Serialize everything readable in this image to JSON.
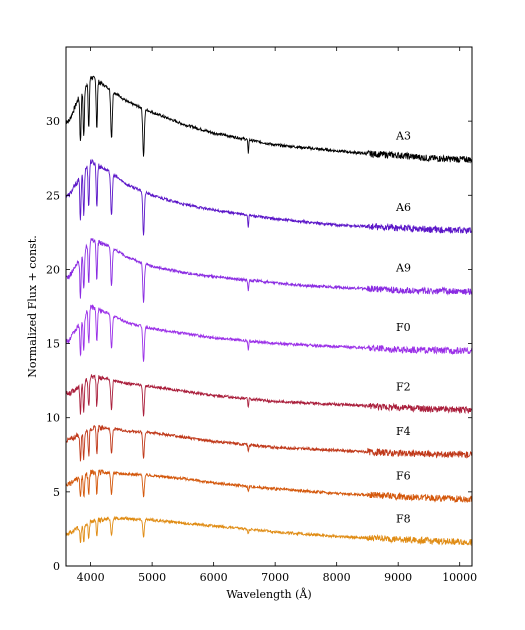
{
  "chart_data": {
    "type": "line",
    "title": "",
    "xlabel": "Wavelength (Å)",
    "ylabel": "Normalized Flux + const.",
    "xlim": [
      3600,
      10200
    ],
    "ylim": [
      0,
      35
    ],
    "x_ticks": [
      4000,
      5000,
      6000,
      7000,
      8000,
      9000,
      10000
    ],
    "x_tick_labels": [
      "4000",
      "5000",
      "6000",
      "7000",
      "8000",
      "9000",
      "10000"
    ],
    "y_ticks": [
      0,
      5,
      10,
      15,
      20,
      25,
      30
    ],
    "y_tick_labels": [
      "0",
      "5",
      "10",
      "15",
      "20",
      "25",
      "30"
    ],
    "grid": false,
    "legend": "none",
    "absorption_lines": [
      3835,
      3889,
      3970,
      4101,
      4340,
      4861,
      6563
    ],
    "series": [
      {
        "name": "A3",
        "color": "#000000",
        "offset": 27.4,
        "x": [
          3650,
          3800,
          4000,
          4300,
          4600,
          5000,
          5500,
          6000,
          6500,
          7000,
          7500,
          8000,
          8500,
          9000,
          9500,
          10200
        ],
        "y": [
          30.0,
          31.5,
          33.0,
          32.2,
          31.3,
          30.6,
          29.8,
          29.2,
          28.8,
          28.4,
          28.2,
          28.0,
          27.8,
          27.7,
          27.5,
          27.4
        ]
      },
      {
        "name": "A6",
        "color": "#5b16c8",
        "offset": 22.6,
        "x": [
          3650,
          3800,
          4000,
          4300,
          4600,
          5000,
          5500,
          6000,
          6500,
          7000,
          7500,
          8000,
          8500,
          9000,
          9500,
          10200
        ],
        "y": [
          25.0,
          26.0,
          27.3,
          26.6,
          25.7,
          25.0,
          24.4,
          24.0,
          23.7,
          23.4,
          23.2,
          23.0,
          22.9,
          22.8,
          22.7,
          22.6
        ]
      },
      {
        "name": "A9",
        "color": "#8a2be2",
        "offset": 18.5,
        "x": [
          3650,
          3800,
          4000,
          4300,
          4600,
          5000,
          5500,
          6000,
          6500,
          7000,
          7500,
          8000,
          8500,
          9000,
          9500,
          10200
        ],
        "y": [
          19.5,
          20.5,
          22.0,
          21.6,
          20.8,
          20.2,
          19.8,
          19.5,
          19.3,
          19.1,
          18.9,
          18.8,
          18.7,
          18.6,
          18.55,
          18.5
        ]
      },
      {
        "name": "F0",
        "color": "#9b30e8",
        "offset": 14.5,
        "x": [
          3650,
          3800,
          4000,
          4300,
          4600,
          5000,
          5500,
          6000,
          6500,
          7000,
          7500,
          8000,
          8500,
          9000,
          9500,
          10200
        ],
        "y": [
          15.2,
          16.2,
          17.5,
          17.0,
          16.4,
          16.0,
          15.7,
          15.4,
          15.2,
          15.0,
          14.9,
          14.8,
          14.7,
          14.6,
          14.55,
          14.5
        ]
      },
      {
        "name": "F2",
        "color": "#aa1f3c",
        "offset": 10.5,
        "x": [
          3650,
          3800,
          4000,
          4300,
          4600,
          5000,
          5500,
          6000,
          6500,
          7000,
          7500,
          8000,
          8500,
          9000,
          9500,
          10200
        ],
        "y": [
          11.6,
          12.1,
          12.8,
          12.6,
          12.3,
          12.1,
          11.8,
          11.5,
          11.3,
          11.1,
          11.0,
          10.9,
          10.8,
          10.7,
          10.6,
          10.5
        ]
      },
      {
        "name": "F4",
        "color": "#c0391a",
        "offset": 7.5,
        "x": [
          3650,
          3800,
          4000,
          4300,
          4600,
          5000,
          5500,
          6000,
          6500,
          7000,
          7500,
          8000,
          8500,
          9000,
          9500,
          10200
        ],
        "y": [
          8.5,
          8.8,
          9.3,
          9.3,
          9.1,
          9.0,
          8.7,
          8.4,
          8.2,
          8.0,
          7.9,
          7.8,
          7.7,
          7.6,
          7.55,
          7.5
        ]
      },
      {
        "name": "F6",
        "color": "#d4580c",
        "offset": 4.5,
        "x": [
          3650,
          3800,
          4000,
          4300,
          4600,
          5000,
          5500,
          6000,
          6500,
          7000,
          7500,
          8000,
          8500,
          9000,
          9500,
          10200
        ],
        "y": [
          5.5,
          5.9,
          6.3,
          6.3,
          6.2,
          6.1,
          5.9,
          5.6,
          5.4,
          5.2,
          5.05,
          4.9,
          4.8,
          4.7,
          4.6,
          4.5
        ]
      },
      {
        "name": "F8",
        "color": "#e08c14",
        "offset": 1.6,
        "x": [
          3650,
          3800,
          4000,
          4300,
          4600,
          5000,
          5500,
          6000,
          6500,
          7000,
          7500,
          8000,
          8500,
          9000,
          9500,
          10200
        ],
        "y": [
          2.2,
          2.6,
          3.0,
          3.2,
          3.2,
          3.1,
          2.9,
          2.7,
          2.5,
          2.3,
          2.15,
          2.0,
          1.9,
          1.8,
          1.7,
          1.6
        ]
      }
    ]
  }
}
